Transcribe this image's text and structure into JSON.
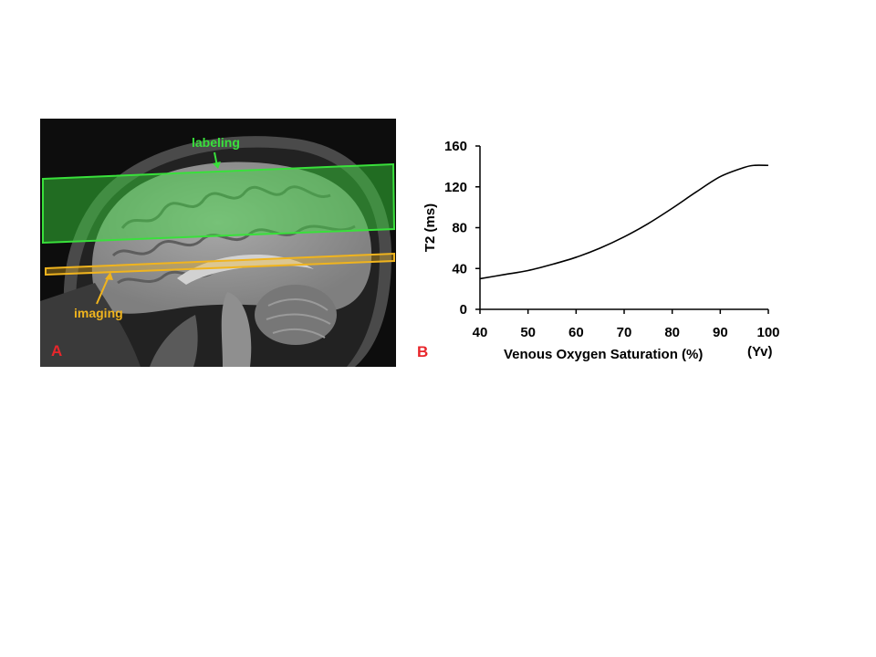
{
  "panel_a": {
    "panel_letter": "A",
    "labels": {
      "labeling": "labeling",
      "imaging": "imaging"
    },
    "colors": {
      "labeling": "#39e03b",
      "imaging": "#f0b41e",
      "panel_letter": "#e8262b"
    }
  },
  "panel_b": {
    "panel_letter": "B"
  },
  "chart_data": {
    "type": "line",
    "title": "",
    "xlabel": "Venous Oxygen Saturation (%)",
    "xlabel_suffix": "(Yv)",
    "ylabel": "T2 (ms)",
    "xlim": [
      40,
      100
    ],
    "ylim": [
      0,
      160
    ],
    "xticks": [
      40,
      50,
      60,
      70,
      80,
      90,
      100
    ],
    "yticks": [
      0,
      40,
      80,
      120,
      160
    ],
    "grid": false,
    "series": [
      {
        "x": [
          40,
          45,
          50,
          55,
          60,
          65,
          70,
          75,
          80,
          85,
          90,
          95,
          97,
          100
        ],
        "y": [
          30,
          34,
          38,
          44,
          51,
          60,
          71,
          84,
          99,
          115,
          130,
          139,
          141,
          141
        ],
        "color": "#000000"
      }
    ]
  }
}
